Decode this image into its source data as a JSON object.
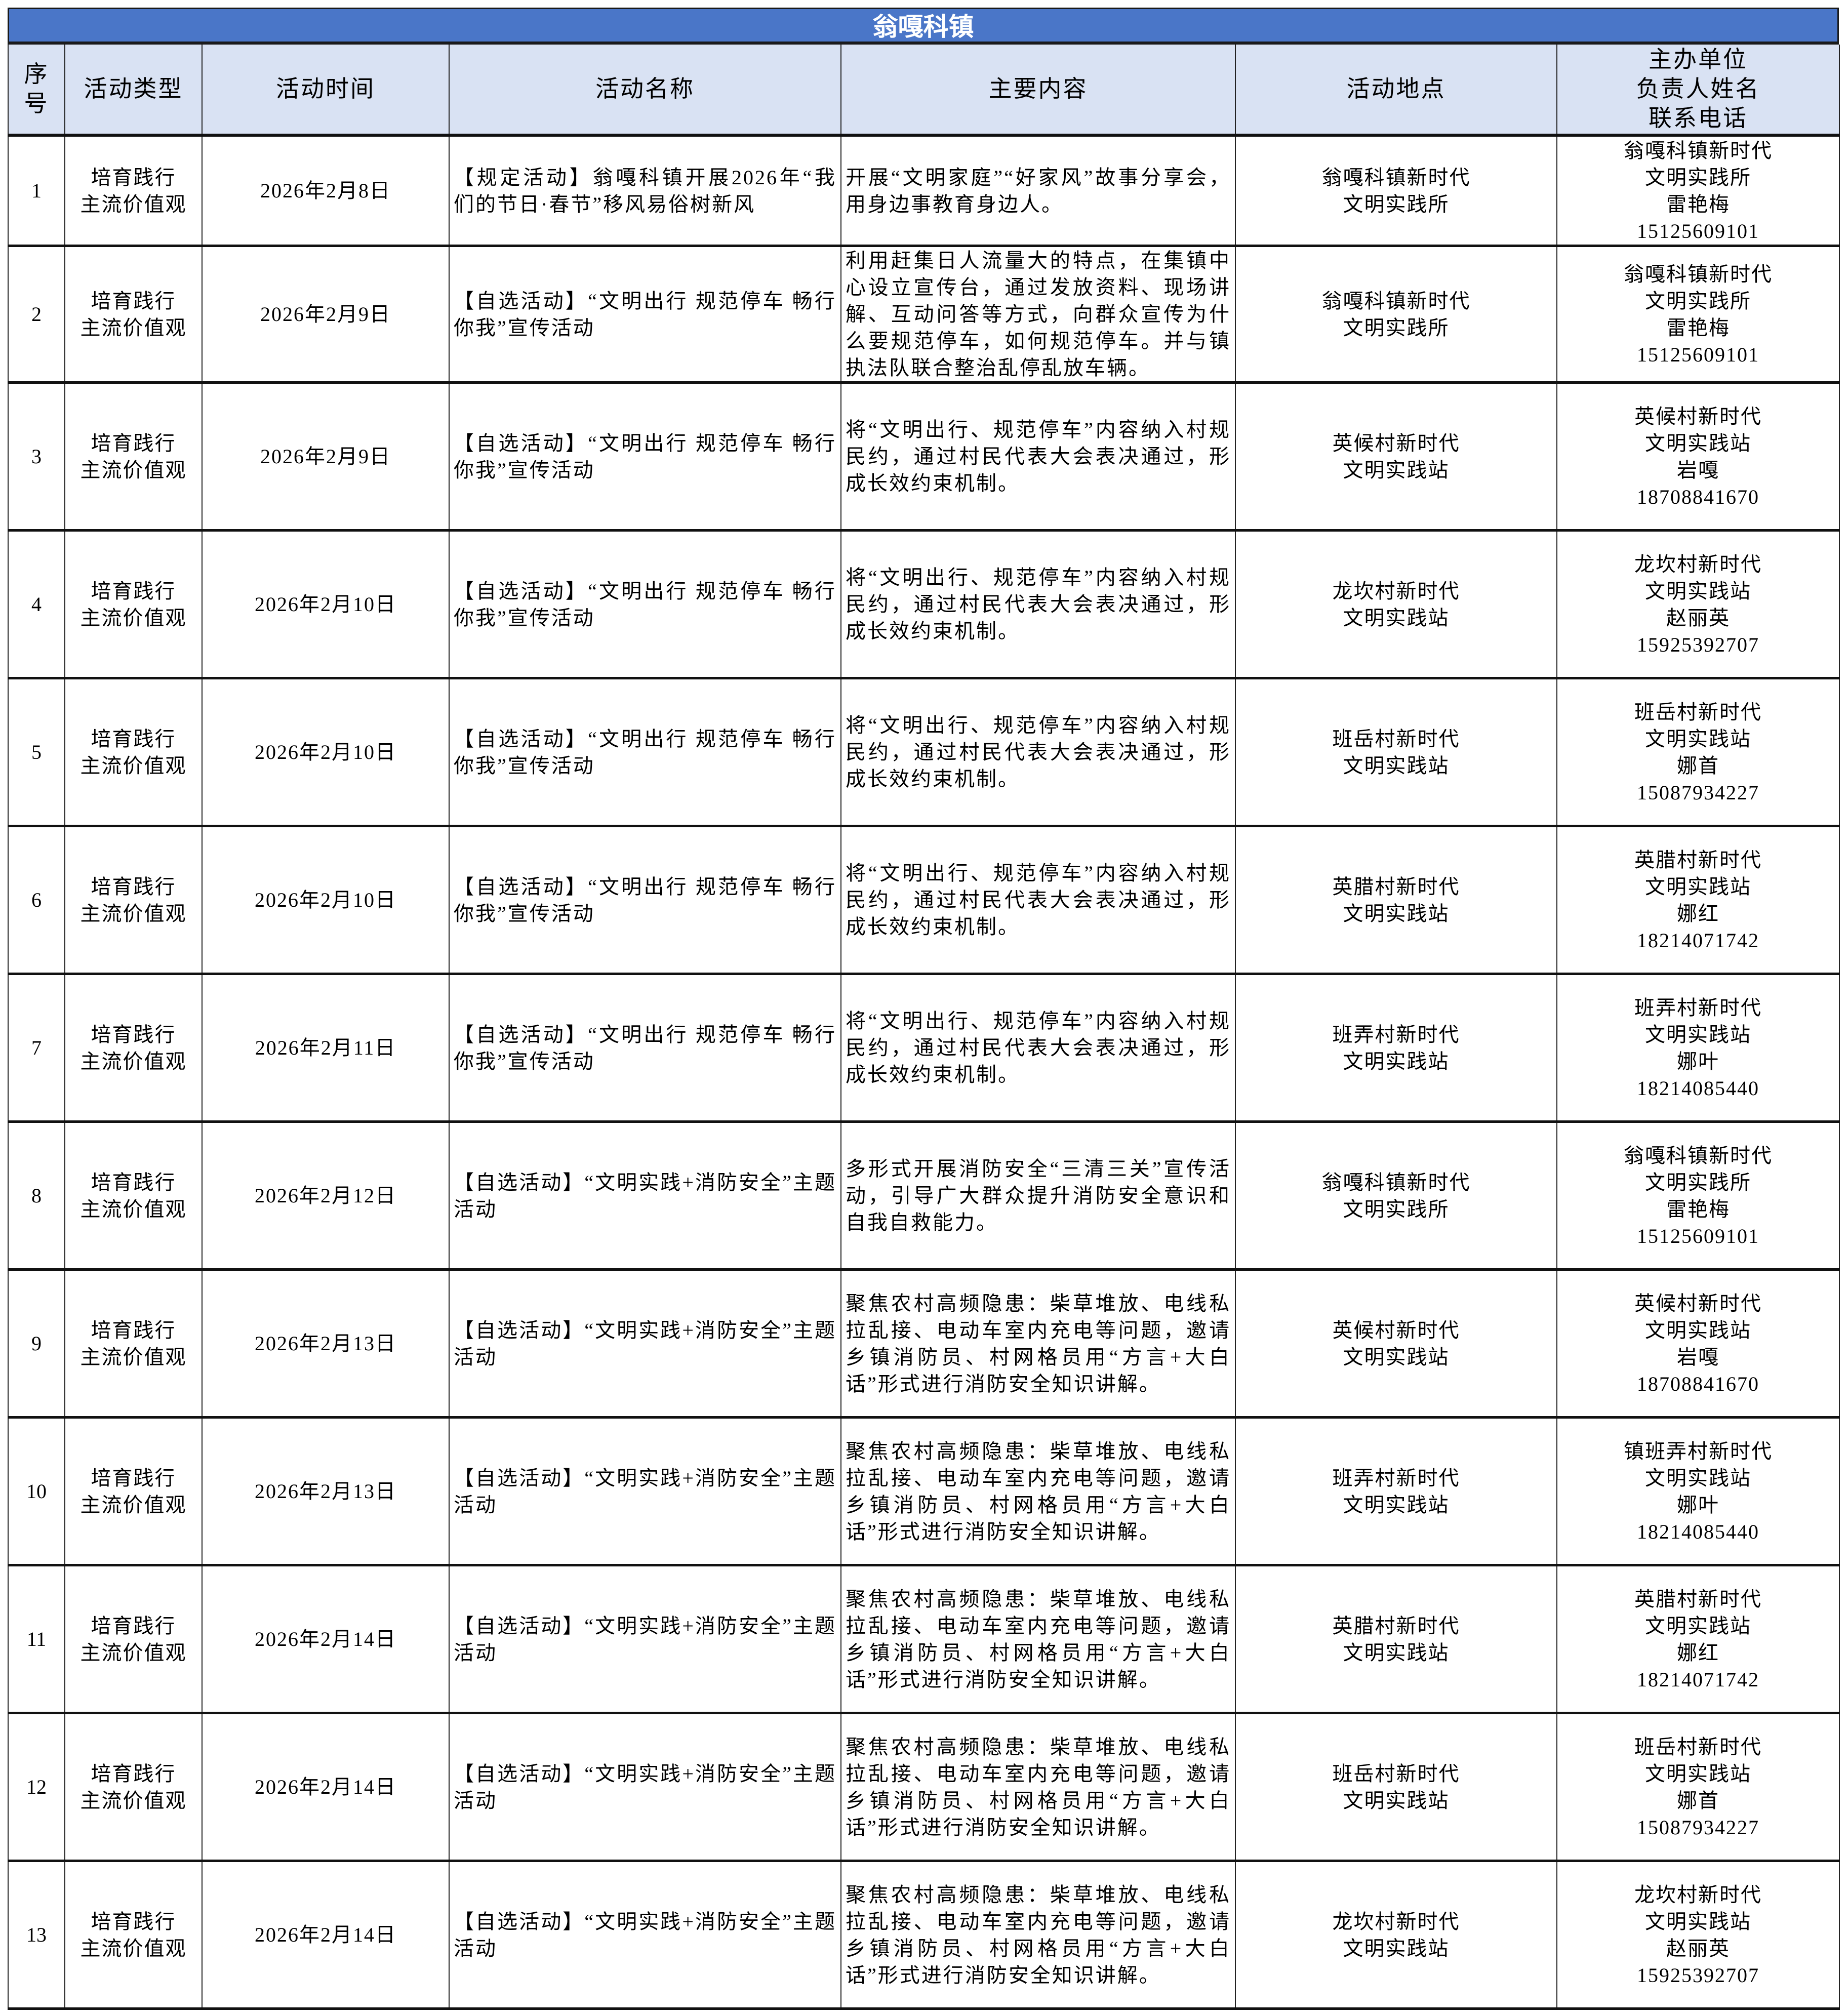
{
  "title": "翁嘎科镇",
  "headers": [
    "序号",
    "活动类型",
    "活动时间",
    "活动名称",
    "主要内容",
    "活动地点",
    "主办单位\n负责人姓名\n联系电话"
  ],
  "rows": [
    {
      "no": "1",
      "type": "培育践行\n主流价值观",
      "date": "2026年2月8日",
      "name": "【规定活动】翁嘎科镇开展2026年“我们的节日·春节”移风易俗树新风",
      "content": "开展“文明家庭”“好家风”故事分享会，用身边事教育身边人。",
      "place": "翁嘎科镇新时代\n文明实践所",
      "org": "翁嘎科镇新时代\n文明实践所\n雷艳梅\n15125609101"
    },
    {
      "no": "2",
      "type": "培育践行\n主流价值观",
      "date": "2026年2月9日",
      "name": "【自选活动】“文明出行 规范停车 畅行你我”宣传活动",
      "content": "利用赶集日人流量大的特点，在集镇中心设立宣传台，通过发放资料、现场讲解、互动问答等方式，向群众宣传为什么要规范停车，如何规范停车。并与镇执法队联合整治乱停乱放车辆。",
      "place": "翁嘎科镇新时代\n文明实践所",
      "org": "翁嘎科镇新时代\n文明实践所\n雷艳梅\n15125609101"
    },
    {
      "no": "3",
      "type": "培育践行\n主流价值观",
      "date": "2026年2月9日",
      "name": "【自选活动】“文明出行 规范停车 畅行你我”宣传活动",
      "content": "将“文明出行、规范停车”内容纳入村规民约，通过村民代表大会表决通过，形成长效约束机制。",
      "place": "英候村新时代\n文明实践站",
      "org": "英候村新时代\n文明实践站\n岩嘎\n18708841670"
    },
    {
      "no": "4",
      "type": "培育践行\n主流价值观",
      "date": "2026年2月10日",
      "name": "【自选活动】“文明出行 规范停车 畅行你我”宣传活动",
      "content": "将“文明出行、规范停车”内容纳入村规民约，通过村民代表大会表决通过，形成长效约束机制。",
      "place": "龙坎村新时代\n文明实践站",
      "org": "龙坎村新时代\n文明实践站\n赵丽英\n15925392707"
    },
    {
      "no": "5",
      "type": "培育践行\n主流价值观",
      "date": "2026年2月10日",
      "name": "【自选活动】“文明出行 规范停车 畅行你我”宣传活动",
      "content": "将“文明出行、规范停车”内容纳入村规民约，通过村民代表大会表决通过，形成长效约束机制。",
      "place": "班岳村新时代\n文明实践站",
      "org": "班岳村新时代\n文明实践站\n娜首\n15087934227"
    },
    {
      "no": "6",
      "type": "培育践行\n主流价值观",
      "date": "2026年2月10日",
      "name": "【自选活动】“文明出行 规范停车 畅行你我”宣传活动",
      "content": "将“文明出行、规范停车”内容纳入村规民约，通过村民代表大会表决通过，形成长效约束机制。",
      "place": "英腊村新时代\n文明实践站",
      "org": "英腊村新时代\n文明实践站\n娜红\n18214071742"
    },
    {
      "no": "7",
      "type": "培育践行\n主流价值观",
      "date": "2026年2月11日",
      "name": "【自选活动】“文明出行 规范停车 畅行你我”宣传活动",
      "content": "将“文明出行、规范停车”内容纳入村规民约，通过村民代表大会表决通过，形成长效约束机制。",
      "place": "班弄村新时代\n文明实践站",
      "org": "班弄村新时代\n文明实践站\n娜叶\n18214085440"
    },
    {
      "no": "8",
      "type": "培育践行\n主流价值观",
      "date": "2026年2月12日",
      "name": "【自选活动】“文明实践+消防安全”主题活动",
      "content": "多形式开展消防安全“三清三关”宣传活动，引导广大群众提升消防安全意识和自我自救能力。",
      "place": "翁嘎科镇新时代\n文明实践所",
      "org": "翁嘎科镇新时代\n文明实践所\n雷艳梅\n15125609101"
    },
    {
      "no": "9",
      "type": "培育践行\n主流价值观",
      "date": "2026年2月13日",
      "name": "【自选活动】“文明实践+消防安全”主题活动",
      "content": "聚焦农村高频隐患：柴草堆放、电线私拉乱接、电动车室内充电等问题，邀请乡镇消防员、村网格员用“方言+大白话”形式进行消防安全知识讲解。",
      "place": "英候村新时代\n文明实践站",
      "org": "英候村新时代\n文明实践站\n岩嘎\n18708841670"
    },
    {
      "no": "10",
      "type": "培育践行\n主流价值观",
      "date": "2026年2月13日",
      "name": "【自选活动】“文明实践+消防安全”主题活动",
      "content": "聚焦农村高频隐患：柴草堆放、电线私拉乱接、电动车室内充电等问题，邀请乡镇消防员、村网格员用“方言+大白话”形式进行消防安全知识讲解。",
      "place": "班弄村新时代\n文明实践站",
      "org": "镇班弄村新时代\n文明实践站\n娜叶\n18214085440"
    },
    {
      "no": "11",
      "type": "培育践行\n主流价值观",
      "date": "2026年2月14日",
      "name": "【自选活动】“文明实践+消防安全”主题活动",
      "content": "聚焦农村高频隐患：柴草堆放、电线私拉乱接、电动车室内充电等问题，邀请乡镇消防员、村网格员用“方言+大白话”形式进行消防安全知识讲解。",
      "place": "英腊村新时代\n文明实践站",
      "org": "英腊村新时代\n文明实践站\n娜红\n18214071742"
    },
    {
      "no": "12",
      "type": "培育践行\n主流价值观",
      "date": "2026年2月14日",
      "name": "【自选活动】“文明实践+消防安全”主题活动",
      "content": "聚焦农村高频隐患：柴草堆放、电线私拉乱接、电动车室内充电等问题，邀请乡镇消防员、村网格员用“方言+大白话”形式进行消防安全知识讲解。",
      "place": "班岳村新时代\n文明实践站",
      "org": "班岳村新时代\n文明实践站\n娜首\n15087934227"
    },
    {
      "no": "13",
      "type": "培育践行\n主流价值观",
      "date": "2026年2月14日",
      "name": "【自选活动】“文明实践+消防安全”主题活动",
      "content": "聚焦农村高频隐患：柴草堆放、电线私拉乱接、电动车室内充电等问题，邀请乡镇消防员、村网格员用“方言+大白话”形式进行消防安全知识讲解。",
      "place": "龙坎村新时代\n文明实践站",
      "org": "龙坎村新时代\n文明实践站\n赵丽英\n15925392707"
    }
  ]
}
